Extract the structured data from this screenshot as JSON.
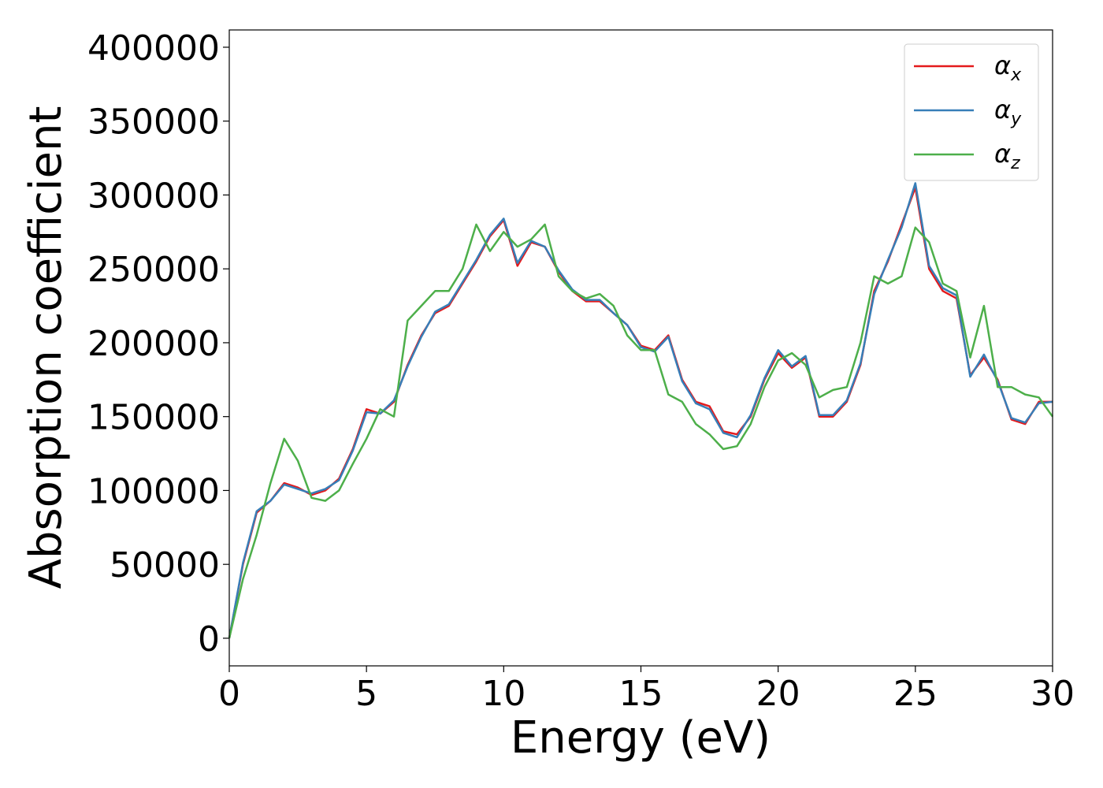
{
  "chart_data": {
    "type": "line",
    "xlabel": "Energy (eV)",
    "ylabel": "Absorption coefficient",
    "x": [
      0,
      0.5,
      1,
      1.5,
      2,
      2.5,
      3,
      3.5,
      4,
      4.5,
      5,
      5.5,
      6,
      6.5,
      7,
      7.5,
      8,
      8.5,
      9,
      9.5,
      10,
      10.5,
      11,
      11.5,
      12,
      12.5,
      13,
      13.5,
      14,
      14.5,
      15,
      15.5,
      16,
      16.5,
      17,
      17.5,
      18,
      18.5,
      19,
      19.5,
      20,
      20.5,
      21,
      21.5,
      22,
      22.5,
      23,
      23.5,
      24,
      24.5,
      25,
      25.5,
      26,
      26.5,
      27,
      27.5,
      28,
      28.5,
      29,
      29.5,
      30
    ],
    "series": [
      {
        "name": "αx",
        "color": "#e41a1c",
        "values": [
          0,
          50000,
          85000,
          93000,
          105000,
          102000,
          97000,
          100000,
          108000,
          128000,
          155000,
          152000,
          160000,
          185000,
          205000,
          220000,
          225000,
          240000,
          255000,
          272000,
          283000,
          252000,
          268000,
          265000,
          248000,
          235000,
          228000,
          228000,
          220000,
          212000,
          198000,
          195000,
          205000,
          175000,
          160000,
          157000,
          140000,
          138000,
          150000,
          175000,
          193000,
          183000,
          190000,
          150000,
          150000,
          160000,
          185000,
          235000,
          255000,
          280000,
          305000,
          250000,
          235000,
          230000,
          178000,
          190000,
          175000,
          148000,
          145000,
          160000,
          160000
        ]
      },
      {
        "name": "αy",
        "color": "#377eb8",
        "values": [
          0,
          51000,
          86000,
          93000,
          104000,
          101000,
          98000,
          101000,
          107000,
          127000,
          153000,
          152000,
          161000,
          184000,
          204000,
          221000,
          226000,
          241000,
          256000,
          273000,
          284000,
          254000,
          269000,
          265000,
          249000,
          236000,
          229000,
          229000,
          220000,
          212000,
          197000,
          194000,
          204000,
          174000,
          159000,
          155000,
          139000,
          136000,
          151000,
          176000,
          195000,
          184000,
          191000,
          151000,
          151000,
          161000,
          186000,
          233000,
          256000,
          278000,
          308000,
          252000,
          237000,
          232000,
          177000,
          192000,
          174000,
          149000,
          146000,
          159000,
          160000
        ]
      },
      {
        "name": "αz",
        "color": "#4daf4a",
        "values": [
          0,
          40000,
          70000,
          105000,
          135000,
          120000,
          95000,
          93000,
          100000,
          118000,
          135000,
          155000,
          150000,
          215000,
          225000,
          235000,
          235000,
          250000,
          280000,
          262000,
          275000,
          265000,
          270000,
          280000,
          245000,
          235000,
          230000,
          233000,
          225000,
          205000,
          195000,
          195000,
          165000,
          160000,
          145000,
          138000,
          128000,
          130000,
          145000,
          170000,
          188000,
          193000,
          185000,
          163000,
          168000,
          170000,
          200000,
          245000,
          240000,
          245000,
          278000,
          268000,
          240000,
          235000,
          190000,
          225000,
          170000,
          170000,
          165000,
          163000,
          150000
        ]
      }
    ],
    "xlim": [
      0,
      30
    ],
    "xticks": [
      0,
      5,
      10,
      15,
      20,
      25,
      30
    ],
    "ylim": [
      -18700,
      411700
    ],
    "yticks": [
      0,
      50000,
      100000,
      150000,
      200000,
      250000,
      300000,
      350000,
      400000
    ],
    "legend": "upper right"
  }
}
